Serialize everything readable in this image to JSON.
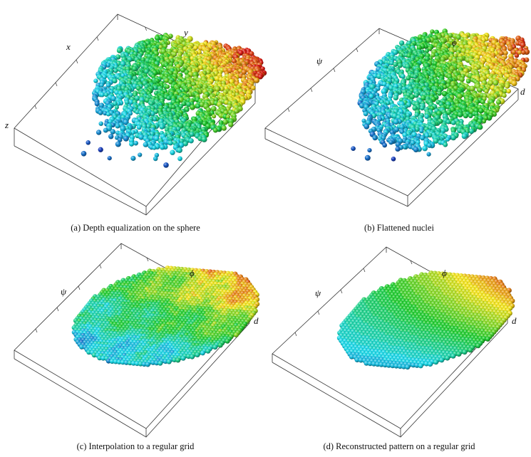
{
  "figure": {
    "panels": [
      {
        "id": "a",
        "caption": "(a)  Depth equalization on the sphere",
        "axes": [
          "x",
          "y",
          "z"
        ],
        "style": "scatter",
        "colormap": [
          "#1a3fbf",
          "#19d6e6",
          "#1fcc2e",
          "#f2e31a",
          "#d91a12"
        ]
      },
      {
        "id": "b",
        "caption": "(b)  Flattened nuclei",
        "axes": [
          "ψ",
          "ϕ",
          "d"
        ],
        "style": "scatter",
        "colormap": [
          "#1a3fbf",
          "#19d6e6",
          "#1fcc2e",
          "#f2e31a",
          "#d91a12"
        ]
      },
      {
        "id": "c",
        "caption": "(c)  Interpolation to a regular grid",
        "axes": [
          "ψ",
          "ϕ",
          "d"
        ],
        "style": "grid-noisy",
        "colormap": [
          "#1a3fbf",
          "#19d6e6",
          "#1fcc2e",
          "#f2e31a",
          "#d91a12"
        ]
      },
      {
        "id": "d",
        "caption": "(d)  Reconstructed pattern on a regular grid",
        "axes": [
          "ψ",
          "ϕ",
          "d"
        ],
        "style": "grid-smooth",
        "colormap": [
          "#1a3fbf",
          "#19d6e6",
          "#1fcc2e",
          "#f2e31a",
          "#d91a12"
        ]
      }
    ]
  }
}
